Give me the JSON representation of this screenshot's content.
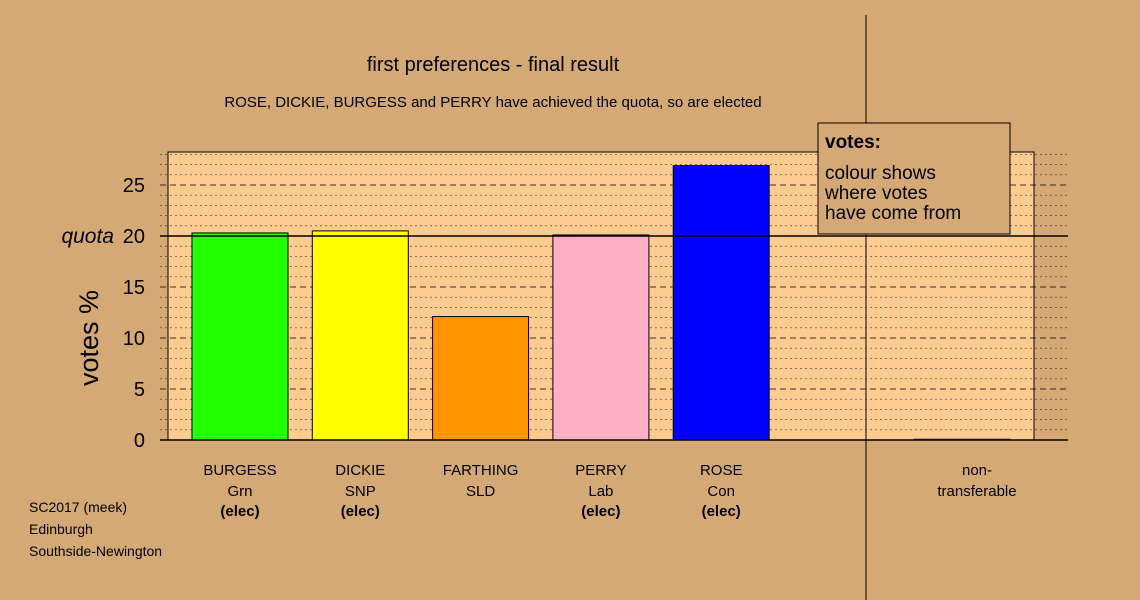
{
  "colors": {
    "background": "#d4a975",
    "plot_panel": "#fecb91",
    "legend_bg": "#d4a975"
  },
  "chart_data": {
    "type": "bar",
    "title": "first preferences - final result",
    "subtitle": "ROSE, DICKIE, BURGESS and PERRY have achieved the quota, so are elected",
    "ylabel": "votes %",
    "ylim": [
      0,
      28
    ],
    "yticks": [
      0,
      5,
      10,
      15,
      20,
      25
    ],
    "quota_label": "quota",
    "quota_value": 20,
    "bars": [
      {
        "name": "BURGESS",
        "party": "Grn",
        "status": "(elec)",
        "value": 20.3,
        "color": "#22ff00"
      },
      {
        "name": "DICKIE",
        "party": "SNP",
        "status": "(elec)",
        "value": 20.5,
        "color": "#ffff00"
      },
      {
        "name": "FARTHING",
        "party": "SLD",
        "status": "",
        "value": 12.1,
        "color": "#ff9500"
      },
      {
        "name": "PERRY",
        "party": "Lab",
        "status": "(elec)",
        "value": 20.1,
        "color": "#ffb0c8"
      },
      {
        "name": "ROSE",
        "party": "Con",
        "status": "(elec)",
        "value": 26.9,
        "color": "#0000ff"
      }
    ],
    "nontransferable": {
      "label_line1": "non-",
      "label_line2": "transferable",
      "value": 0
    },
    "legend": {
      "title": "votes:",
      "lines": [
        "colour shows",
        "where votes",
        "have come from"
      ]
    }
  },
  "footer": {
    "line1": "SC2017 (meek)",
    "line2": "Edinburgh",
    "line3": "Southside-Newington"
  }
}
